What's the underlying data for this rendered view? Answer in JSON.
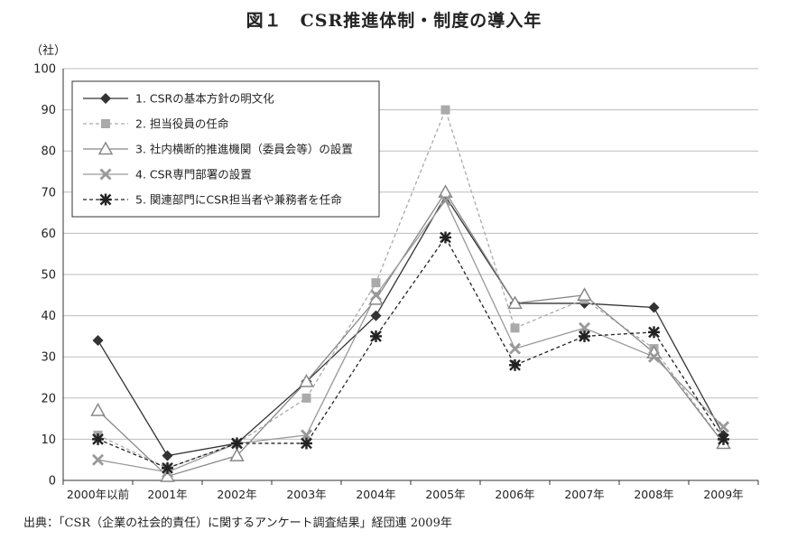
{
  "chart_data": {
    "type": "line",
    "title": "図１　CSR推進体制・制度の導入年",
    "y_unit": "（社）",
    "ylim": [
      0,
      100
    ],
    "yticks": [
      0,
      10,
      20,
      30,
      40,
      50,
      60,
      70,
      80,
      90,
      100
    ],
    "grid": "horizontal",
    "legend": "top-left",
    "categories": [
      "2000年以前",
      "2001年",
      "2002年",
      "2003年",
      "2004年",
      "2005年",
      "2006年",
      "2007年",
      "2008年",
      "2009年"
    ],
    "series": [
      {
        "name": "1.  CSRの基本方針の明文化",
        "marker": "diamond",
        "color": "#333333",
        "dash": "solid",
        "values": [
          34,
          6,
          9,
          24,
          40,
          69,
          43,
          43,
          42,
          11
        ]
      },
      {
        "name": "2.  担当役員の任命",
        "marker": "square",
        "color": "#aaaaaa",
        "dash": "dashed",
        "values": [
          11,
          3,
          9,
          20,
          48,
          90,
          37,
          44,
          32,
          9
        ]
      },
      {
        "name": "3.  社内横断的推進機関（委員会等）の設置",
        "marker": "triangle",
        "color": "#888888",
        "dash": "solid",
        "values": [
          17,
          1,
          6,
          24,
          44,
          70,
          43,
          45,
          31,
          9
        ]
      },
      {
        "name": "4.  CSR専門部署の設置",
        "marker": "x",
        "color": "#999999",
        "dash": "solid",
        "values": [
          5,
          2,
          9,
          11,
          45,
          68,
          32,
          37,
          30,
          13
        ]
      },
      {
        "name": "5.  関連部門にCSR担当者や兼務者を任命",
        "marker": "asterisk",
        "color": "#222222",
        "dash": "dashed",
        "values": [
          10,
          3,
          9,
          9,
          35,
          59,
          28,
          35,
          36,
          10
        ]
      }
    ]
  },
  "source_note": "出典：「CSR（企業の社会的責任）に関するアンケート調査結果」経団連 2009年"
}
